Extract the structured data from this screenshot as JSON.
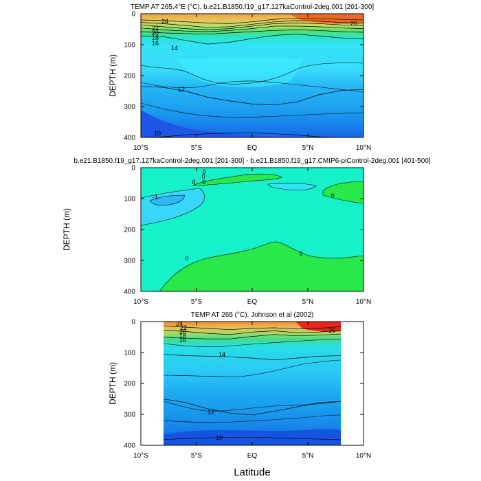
{
  "figure": {
    "xlabel": "Latitude"
  },
  "chart_data": [
    {
      "type": "heatmap",
      "title": "TEMP AT 265.4°E (°C), b.e21.B1850.f19_g17.127kaControl-2deg.001 [201-300]",
      "xlabel": "",
      "ylabel": "DEPTH (m)",
      "x_ticks": [
        "10°S",
        "5°S",
        "EQ",
        "5°N",
        "10°N"
      ],
      "x_tick_values": [
        -10,
        -5,
        0,
        5,
        10
      ],
      "y_ticks": [
        "0",
        "100",
        "200",
        "300",
        "400"
      ],
      "y_tick_values": [
        0,
        100,
        200,
        300,
        400
      ],
      "xlim": [
        -10,
        10
      ],
      "ylim": [
        400,
        0
      ],
      "y_reversed": true,
      "contour_interval": 1,
      "isotherms": [
        {
          "level": 24,
          "label": "24",
          "x": [
            -10,
            -8,
            -6,
            -4,
            -2,
            0,
            2,
            4,
            6,
            8,
            10
          ],
          "y": [
            20,
            22,
            26,
            30,
            32,
            26,
            18,
            14,
            16,
            18,
            20
          ]
        },
        {
          "level": 22,
          "label": "22",
          "x": [
            -10,
            -8,
            -6,
            -4,
            -2,
            0,
            2,
            4,
            6,
            8,
            10
          ],
          "y": [
            28,
            32,
            38,
            44,
            42,
            34,
            26,
            22,
            24,
            28,
            30
          ]
        },
        {
          "level": 20,
          "label": "20",
          "x": [
            -10,
            -8,
            -6,
            -4,
            -2,
            0,
            2,
            4,
            6,
            8,
            10
          ],
          "y": [
            36,
            42,
            48,
            52,
            48,
            40,
            32,
            30,
            32,
            36,
            38
          ]
        },
        {
          "level": 18,
          "label": "18",
          "x": [
            -10,
            -8,
            -6,
            -4,
            -2,
            0,
            2,
            4,
            6,
            8,
            10
          ],
          "y": [
            46,
            52,
            56,
            58,
            54,
            48,
            40,
            40,
            42,
            46,
            48
          ]
        },
        {
          "level": 16,
          "label": "16",
          "x": [
            -10,
            -8,
            -6,
            -4,
            -2,
            0,
            2,
            4,
            6,
            8,
            10
          ],
          "y": [
            58,
            62,
            64,
            66,
            62,
            58,
            54,
            52,
            54,
            58,
            60
          ]
        },
        {
          "level": 14,
          "label": "14",
          "x": [
            -10,
            -8,
            -6,
            -4,
            -2,
            0,
            2,
            4,
            6,
            8,
            10
          ],
          "y": [
            72,
            74,
            86,
            98,
            92,
            80,
            70,
            66,
            72,
            78,
            82
          ]
        },
        {
          "level": 12,
          "label": "12",
          "x": [
            -10,
            -8,
            -6,
            -4,
            -2,
            0,
            2,
            4,
            6,
            8,
            10
          ],
          "y": [
            235,
            238,
            250,
            270,
            282,
            292,
            295,
            285,
            262,
            248,
            245
          ]
        },
        {
          "level": 10,
          "label": "10",
          "x": [
            -10,
            -8,
            -6,
            -4,
            -2,
            0,
            2,
            4,
            6,
            8,
            10
          ],
          "y": [
            400,
            398,
            392,
            388,
            386,
            385,
            388,
            392,
            398,
            400,
            400
          ]
        }
      ],
      "contour_labels": [
        "24",
        "22",
        "20",
        "18",
        "16",
        "14",
        "12",
        "10",
        "26"
      ]
    },
    {
      "type": "heatmap",
      "title": "b.e21.B1850.f19_g17.127kaControl-2deg.001 [201-300] - b.e21.B1850.f19_g17.CMIP6-piControl-2deg.001 [401-500]",
      "xlabel": "",
      "ylabel": "DEPTH (m)",
      "x_ticks": [
        "10°S",
        "5°S",
        "EQ",
        "5°N",
        "10°N"
      ],
      "x_tick_values": [
        -10,
        -5,
        0,
        5,
        10
      ],
      "y_ticks": [
        "0",
        "100",
        "200",
        "300",
        "400"
      ],
      "y_tick_values": [
        0,
        100,
        200,
        300,
        400
      ],
      "xlim": [
        -10,
        10
      ],
      "ylim": [
        400,
        0
      ],
      "y_reversed": true,
      "contour_interval": 1,
      "contour_labels": [
        "0",
        "0",
        "0",
        "-1",
        "0",
        "0",
        "0",
        "0"
      ]
    },
    {
      "type": "heatmap",
      "title": "TEMP AT 265 (°C), Johnson et al (2002)",
      "xlabel": "Latitude",
      "ylabel": "DEPTH (m)",
      "x_ticks": [
        "10°S",
        "5°S",
        "EQ",
        "5°N",
        "10°N"
      ],
      "x_tick_values": [
        -10,
        -5,
        0,
        5,
        10
      ],
      "y_ticks": [
        "0",
        "100",
        "200",
        "300",
        "400"
      ],
      "y_tick_values": [
        0,
        100,
        200,
        300,
        400
      ],
      "xlim": [
        -10,
        10
      ],
      "ylim": [
        400,
        0
      ],
      "y_reversed": true,
      "data_xlim": [
        -8,
        8
      ],
      "contour_interval": 1,
      "isotherms": [
        {
          "level": 24,
          "label": "24",
          "x": [
            -8,
            -6,
            -4,
            -2,
            0,
            2,
            4,
            6,
            8
          ],
          "y": [
            14,
            18,
            22,
            26,
            22,
            20,
            24,
            22,
            16
          ]
        },
        {
          "level": 20,
          "label": "20",
          "x": [
            -8,
            -6,
            -4,
            -2,
            0,
            2,
            4,
            6,
            8
          ],
          "y": [
            28,
            32,
            38,
            42,
            34,
            30,
            36,
            34,
            28
          ]
        },
        {
          "level": 16,
          "label": "16",
          "x": [
            -8,
            -6,
            -4,
            -2,
            0,
            2,
            4,
            6,
            8
          ],
          "y": [
            50,
            54,
            56,
            56,
            48,
            42,
            46,
            44,
            40
          ]
        },
        {
          "level": 14,
          "label": "14",
          "x": [
            -8,
            -6,
            -4,
            -2,
            0,
            2,
            4,
            6,
            8
          ],
          "y": [
            106,
            110,
            112,
            114,
            118,
            124,
            118,
            112,
            110
          ]
        },
        {
          "level": 12,
          "label": "12",
          "x": [
            -8,
            -6,
            -4,
            -2,
            0,
            2,
            4,
            6,
            8
          ],
          "y": [
            250,
            262,
            282,
            296,
            302,
            290,
            276,
            262,
            258
          ]
        },
        {
          "level": 10,
          "label": "10",
          "x": [
            -8,
            -6,
            -4,
            -2,
            0,
            2,
            4,
            6,
            8
          ],
          "y": [
            382,
            378,
            376,
            374,
            374,
            376,
            378,
            380,
            382
          ]
        }
      ],
      "contour_labels": [
        "24",
        "22",
        "20",
        "18",
        "16",
        "14",
        "12",
        "10",
        "26"
      ]
    }
  ]
}
